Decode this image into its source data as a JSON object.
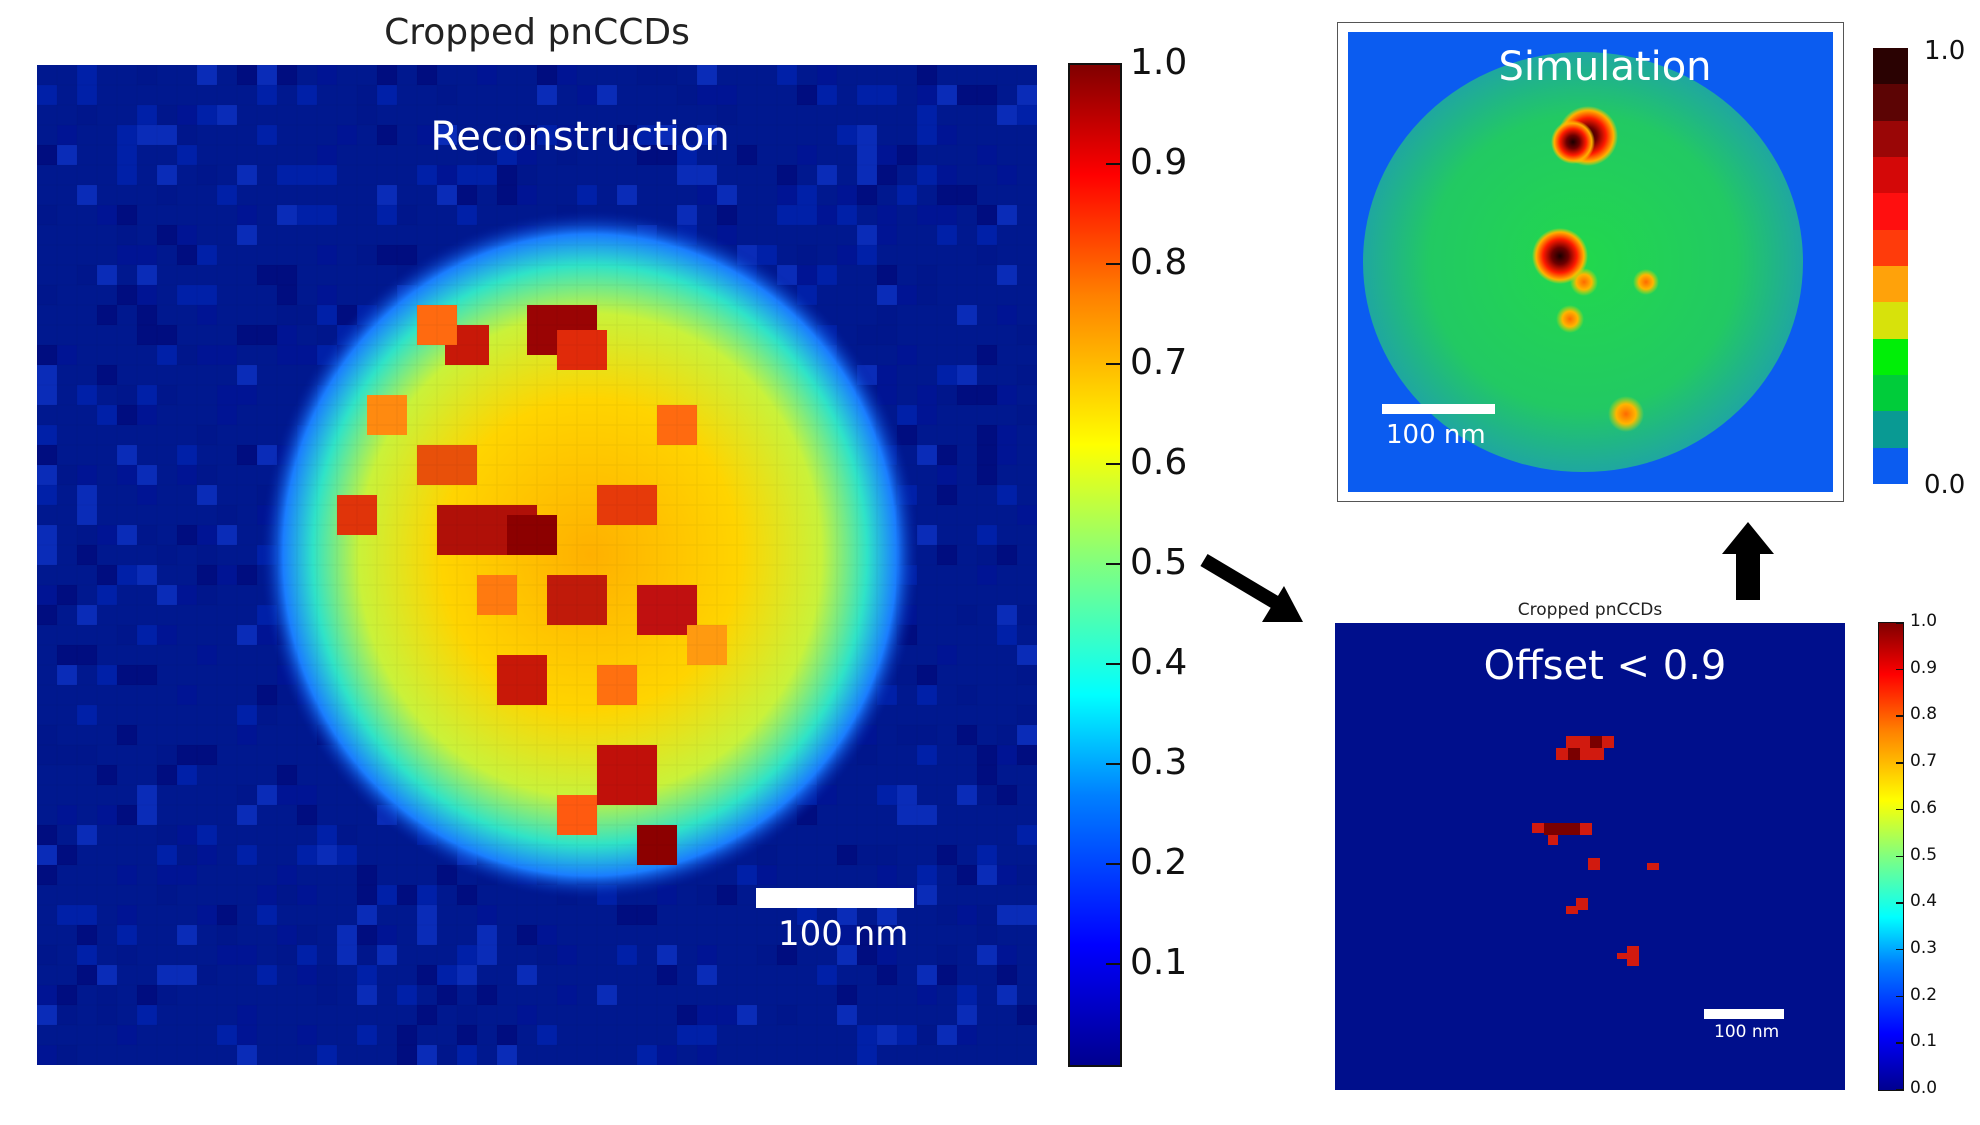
{
  "left_panel": {
    "title": "Cropped pnCCDs",
    "overlay_label": "Reconstruction",
    "scale_bar_label": "100 nm",
    "colorbar_ticks": [
      "1.0",
      "0.9",
      "0.8",
      "0.7",
      "0.6",
      "0.5",
      "0.4",
      "0.3",
      "0.2",
      "0.1"
    ],
    "colormap": "jet"
  },
  "simulation_panel": {
    "overlay_label": "Simulation",
    "scale_bar_label": "100 nm",
    "background_color": "#0b5cf0",
    "colorbar_ticks": [
      "1.0",
      "0.0"
    ],
    "colorbar_colors": [
      "#2a0202",
      "#5c0404",
      "#9a0606",
      "#d40808",
      "#ff0f0f",
      "#ff3b0b",
      "#ffa20a",
      "#d7e20b",
      "#00ef07",
      "#00cc3a",
      "#099a93",
      "#0b5cf0"
    ]
  },
  "offset_panel": {
    "title": "Cropped pnCCDs",
    "overlay_label": "Offset < 0.9",
    "scale_bar_label": "100 nm",
    "background_color": "#000f8c",
    "colorbar_ticks": [
      "1.0",
      "0.9",
      "0.8",
      "0.7",
      "0.6",
      "0.5",
      "0.4",
      "0.3",
      "0.2",
      "0.1",
      "0.0"
    ],
    "colormap": "jet"
  },
  "arrows": {
    "diagonal": "arrow pointing from reconstruction to offset panel",
    "up": "arrow pointing from offset panel to simulation"
  },
  "colors": {
    "hot_red": "#d11a0f",
    "dark_red": "#7a0000"
  }
}
